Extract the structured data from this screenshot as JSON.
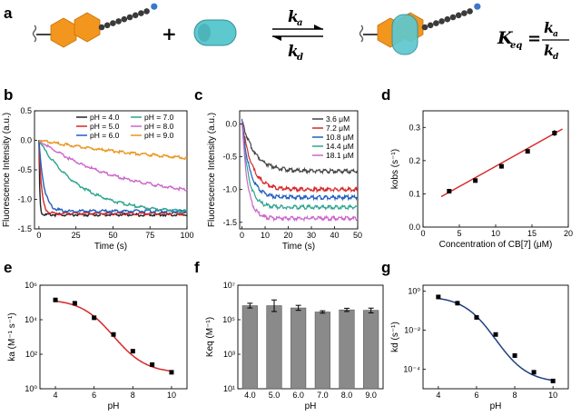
{
  "figure": {
    "panel_labels": [
      "a",
      "b",
      "c",
      "d",
      "e",
      "f",
      "g"
    ],
    "scheme": {
      "plus": "+",
      "rate_forward": "k",
      "rate_forward_sub": "a",
      "rate_backward": "k",
      "rate_backward_sub": "d",
      "keq_label": "K",
      "keq_sub": "eq",
      "keq_equals": "=",
      "keq_num": "k",
      "keq_num_sub": "a",
      "keq_den": "k",
      "keq_den_sub": "d",
      "colors": {
        "hexagon": "#f2961e",
        "macrocycle": "#5ec8cf",
        "macrocycle_dark": "#2f8f98",
        "bead": "#3a3a3a",
        "bead_end": "#3a78c8"
      }
    }
  },
  "chart_data": [
    {
      "id": "b",
      "type": "line",
      "xlabel": "Time (s)",
      "ylabel": "Fluorescence Intensity (a.u.)",
      "xlim": [
        -3,
        100
      ],
      "ylim": [
        -1.5,
        0.5
      ],
      "xticks": [
        "0",
        "25",
        "50",
        "75",
        "100"
      ],
      "yticks": [
        "-1.5",
        "-1.0",
        "-0.5",
        "0.0",
        "0.5"
      ],
      "legend_position": "top-right",
      "series": [
        {
          "name": "pH = 4.0",
          "color": "#222222",
          "model": {
            "a": -1.26,
            "k": 1.9
          }
        },
        {
          "name": "pH = 5.0",
          "color": "#d62728",
          "model": {
            "a": -1.24,
            "k": 0.6
          }
        },
        {
          "name": "pH = 6.0",
          "color": "#1f5fbf",
          "model": {
            "a": -1.2,
            "k": 0.3
          }
        },
        {
          "name": "pH = 7.0",
          "color": "#2ca58d",
          "model": {
            "a": -1.24,
            "k": 0.035
          }
        },
        {
          "name": "pH = 8.0",
          "color": "#cc66cc",
          "model": {
            "a": -1.0,
            "k": 0.018
          }
        },
        {
          "name": "pH = 9.0",
          "color": "#e8961e",
          "model": {
            "a": -0.5,
            "k": 0.009
          }
        }
      ]
    },
    {
      "id": "c",
      "type": "line",
      "xlabel": "Time (s)",
      "ylabel": "Fluorescence Intensity (a.u.)",
      "xlim": [
        -1,
        50
      ],
      "ylim": [
        -1.6,
        0.2
      ],
      "xticks": [
        "0",
        "10",
        "20",
        "30",
        "40",
        "50"
      ],
      "yticks": [
        "-1.5",
        "-1.0",
        "-0.5",
        "0.0"
      ],
      "legend_position": "top-right",
      "series": [
        {
          "name": "3.6 μM",
          "color": "#444444",
          "model": {
            "a": -0.72,
            "k": 0.18
          }
        },
        {
          "name": "7.2 μM",
          "color": "#d62728",
          "model": {
            "a": -1.0,
            "k": 0.24
          }
        },
        {
          "name": "10.8 μM",
          "color": "#1f5fbf",
          "model": {
            "a": -1.12,
            "k": 0.3
          }
        },
        {
          "name": "14.4 μM",
          "color": "#2ca58d",
          "model": {
            "a": -1.27,
            "k": 0.36
          }
        },
        {
          "name": "18.1 μM",
          "color": "#cc66cc",
          "model": {
            "a": -1.44,
            "k": 0.42
          }
        }
      ]
    },
    {
      "id": "d",
      "type": "scatter",
      "xlabel": "Concentration of CB[7] (μM)",
      "ylabel": "kobs (s⁻¹)",
      "xlim": [
        0,
        20
      ],
      "ylim": [
        0,
        0.35
      ],
      "xticks": [
        "0",
        "5",
        "10",
        "15",
        "20"
      ],
      "yticks": [
        "0.0",
        "0.1",
        "0.2",
        "0.3"
      ],
      "x": [
        3.6,
        7.2,
        10.8,
        14.4,
        18.1
      ],
      "y": [
        0.108,
        0.14,
        0.183,
        0.228,
        0.283
      ],
      "yerr": [
        0.006,
        0.005,
        0.007,
        0.004,
        0.009
      ],
      "fit": {
        "slope": 0.0122,
        "intercept": 0.061,
        "color": "#d62728"
      }
    },
    {
      "id": "e",
      "type": "scatter",
      "xlabel": "pH",
      "ylabel": "ka (M⁻¹ s⁻¹)",
      "yscale": "log",
      "xlim": [
        3.2,
        10.8
      ],
      "ylim": [
        1,
        1000000
      ],
      "xticks": [
        "4",
        "6",
        "8",
        "10"
      ],
      "yticks": [
        "10⁰",
        "10²",
        "10⁴",
        "10⁶"
      ],
      "x": [
        4,
        5,
        6,
        7,
        8,
        9,
        10
      ],
      "y": [
        140000,
        90000,
        13000,
        1400,
        150,
        25,
        9
      ],
      "fit_color": "#d62728"
    },
    {
      "id": "f",
      "type": "bar",
      "xlabel": "pH",
      "ylabel": "Keq (M⁻¹)",
      "yscale": "log",
      "ylim": [
        10,
        10000000
      ],
      "categories": [
        "4.0",
        "5.0",
        "6.0",
        "7.0",
        "8.0",
        "9.0"
      ],
      "values": [
        650000,
        650000,
        480000,
        280000,
        370000,
        350000
      ],
      "errors_low": [
        480000,
        300000,
        350000,
        240000,
        300000,
        250000
      ],
      "errors_high": [
        900000,
        1400000,
        680000,
        330000,
        460000,
        470000
      ],
      "yticks": [
        "10¹",
        "10³",
        "10⁵",
        "10⁷"
      ],
      "bar_color": "#8a8a8a"
    },
    {
      "id": "g",
      "type": "scatter",
      "xlabel": "pH",
      "ylabel": "kd (s⁻¹)",
      "yscale": "log",
      "xlim": [
        3.2,
        10.8
      ],
      "ylim": [
        1e-05,
        2
      ],
      "xticks": [
        "4",
        "6",
        "8",
        "10"
      ],
      "yticks": [
        "10⁰",
        "10⁻²",
        "10⁻⁴"
      ],
      "x": [
        4,
        5,
        6,
        7,
        8,
        9,
        10
      ],
      "y": [
        0.5,
        0.24,
        0.045,
        0.006,
        0.0005,
        7e-05,
        2.5e-05
      ],
      "fit_color": "#1f3f7f"
    }
  ]
}
